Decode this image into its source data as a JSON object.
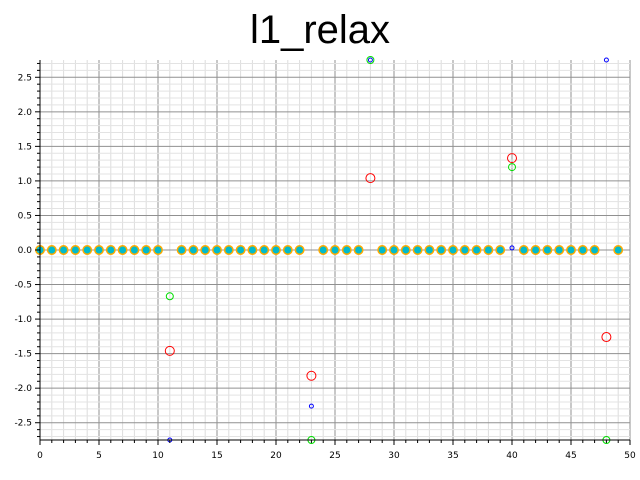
{
  "chart_data": {
    "type": "scatter",
    "title": "l1_relax",
    "xlabel": "",
    "ylabel": "",
    "xlim": [
      0,
      50
    ],
    "ylim": [
      -2.75,
      2.75
    ],
    "grid": true,
    "x_ticks": [
      0,
      5,
      10,
      15,
      20,
      25,
      30,
      35,
      40,
      45,
      50
    ],
    "y_ticks": [
      -2.5,
      -2.0,
      -1.5,
      -1.0,
      -0.5,
      0.0,
      0.5,
      1.0,
      1.5,
      2.0,
      2.5
    ],
    "y_tick_labels": [
      "-2.5",
      "-2.0",
      "-1.5",
      "-1.0",
      "-0.5",
      "0.0",
      "0.5",
      "1.0",
      "1.5",
      "2.0",
      "2.5"
    ],
    "series": [
      {
        "color": "#ff0000",
        "marker": "large-circle",
        "x": [
          0,
          1,
          2,
          3,
          4,
          5,
          6,
          7,
          8,
          9,
          10,
          11,
          12,
          13,
          14,
          15,
          16,
          17,
          18,
          19,
          20,
          21,
          22,
          23,
          24,
          25,
          26,
          27,
          28,
          29,
          30,
          31,
          32,
          33,
          34,
          35,
          36,
          37,
          38,
          39,
          40,
          41,
          42,
          43,
          44,
          45,
          46,
          47,
          48,
          49
        ],
        "values": [
          0,
          0,
          0,
          0,
          0,
          0,
          0,
          0,
          0,
          0,
          0,
          -1.46,
          0,
          0,
          0,
          0,
          0,
          0,
          0,
          0,
          0,
          0,
          0,
          -1.82,
          0,
          0,
          0,
          0,
          1.04,
          0,
          0,
          0,
          0,
          0,
          0,
          0,
          0,
          0,
          0,
          0,
          1.33,
          0,
          0,
          0,
          0,
          0,
          0,
          0,
          -1.26,
          0
        ]
      },
      {
        "color": "#00dd00",
        "marker": "medium-circle",
        "x": [
          0,
          1,
          2,
          3,
          4,
          5,
          6,
          7,
          8,
          9,
          10,
          11,
          12,
          13,
          14,
          15,
          16,
          17,
          18,
          19,
          20,
          21,
          22,
          23,
          24,
          25,
          26,
          27,
          28,
          29,
          30,
          31,
          32,
          33,
          34,
          35,
          36,
          37,
          38,
          39,
          40,
          41,
          42,
          43,
          44,
          45,
          46,
          47,
          48,
          49
        ],
        "values": [
          0,
          0,
          0,
          0,
          0,
          0,
          0,
          0,
          0,
          0,
          0,
          -0.67,
          0,
          0,
          0,
          0,
          0,
          0,
          0,
          0,
          0,
          0,
          0,
          -2.75,
          0,
          0,
          0,
          0,
          2.75,
          0,
          0,
          0,
          0,
          0,
          0,
          0,
          0,
          0,
          0,
          0,
          1.2,
          0,
          0,
          0,
          0,
          0,
          0,
          0,
          -2.75,
          0
        ]
      },
      {
        "color": "#0000ff",
        "marker": "small-circle",
        "x": [
          0,
          1,
          2,
          3,
          4,
          5,
          6,
          7,
          8,
          9,
          10,
          11,
          12,
          13,
          14,
          15,
          16,
          17,
          18,
          19,
          20,
          21,
          22,
          23,
          24,
          25,
          26,
          27,
          28,
          29,
          30,
          31,
          32,
          33,
          34,
          35,
          36,
          37,
          38,
          39,
          40,
          41,
          42,
          43,
          44,
          45,
          46,
          47,
          48,
          49
        ],
        "values": [
          0,
          0,
          0,
          0,
          0,
          0,
          0,
          0,
          0,
          0,
          0,
          -2.75,
          0,
          0,
          0,
          0,
          0,
          0,
          0,
          0,
          0,
          0,
          0,
          -2.26,
          0,
          0,
          0,
          0,
          2.75,
          0,
          0,
          0,
          0,
          0,
          0,
          0,
          0,
          0,
          0,
          0,
          0.03,
          0,
          0,
          0,
          0,
          0,
          0,
          0,
          2.75,
          0
        ]
      }
    ],
    "zero_markers": {
      "color": "#ffaa00",
      "fill": "#00bbcc"
    }
  }
}
